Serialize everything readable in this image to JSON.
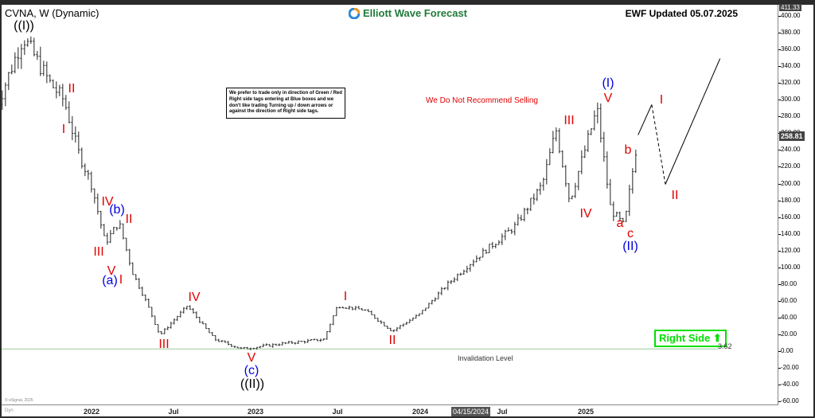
{
  "header": {
    "title": "CVNA, W (Dynamic)",
    "logo": "Elliott Wave Forecast",
    "updated": "EWF Updated 05.07.2025"
  },
  "note": "We prefer to trade only in direction of Green / Red Right side tags entering at Blue boxes and we don't like trading Turning up / down arrows or against the direction of Right side tags.",
  "no_sell": "We Do Not Recommend Selling",
  "right_side": "Right Side",
  "right_side_icon": "arrow-up-icon",
  "invalidation": {
    "label": "Invalidation Level",
    "value": "3.62"
  },
  "price_tag": "258.81",
  "top_tag": "411.33",
  "date_tag": "04/15/2024",
  "copyright": "© eSignal, 2025",
  "dyn": "Dyn",
  "colors": {
    "red": "#e00000",
    "blue": "#0000e0",
    "green": "#00e000"
  },
  "chart_data": {
    "type": "candlestick",
    "ylim": [
      -60,
      411.33
    ],
    "yticks": [
      "400.00",
      "380.00",
      "360.00",
      "340.00",
      "320.00",
      "300.00",
      "280.00",
      "260.00",
      "240.00",
      "220.00",
      "200.00",
      "180.00",
      "160.00",
      "140.00",
      "120.00",
      "100.00",
      "80.00",
      "60.00",
      "40.00",
      "20.00",
      "0.00",
      "-20.00",
      "-40.00",
      "-60.00"
    ],
    "xticks": [
      "2022",
      "Jul",
      "2023",
      "Jul",
      "2024",
      "Jul",
      "2025"
    ],
    "price_path": [
      [
        "2021-06",
        290
      ],
      [
        "2021-08",
        376
      ],
      [
        "2021-10",
        320
      ],
      [
        "2021-11",
        300
      ],
      [
        "2021-12",
        240
      ],
      [
        "2022-01",
        200
      ],
      [
        "2022-02",
        130
      ],
      [
        "2022-03",
        155
      ],
      [
        "2022-04",
        95
      ],
      [
        "2022-05",
        60
      ],
      [
        "2022-06",
        20
      ],
      [
        "2022-08",
        55
      ],
      [
        "2022-10",
        15
      ],
      [
        "2022-12",
        3.62
      ],
      [
        "2023-03",
        10
      ],
      [
        "2023-06",
        15
      ],
      [
        "2023-07",
        55
      ],
      [
        "2023-09",
        50
      ],
      [
        "2023-11",
        25
      ],
      [
        "2024-01",
        45
      ],
      [
        "2024-03",
        80
      ],
      [
        "2024-05",
        110
      ],
      [
        "2024-08",
        150
      ],
      [
        "2024-10",
        200
      ],
      [
        "2024-11",
        265
      ],
      [
        "2024-12",
        180
      ],
      [
        "2025-02",
        290
      ],
      [
        "2025-03",
        170
      ],
      [
        "2025-04",
        150
      ],
      [
        "2025-05",
        258.81
      ]
    ],
    "projection": [
      [
        "2025-05",
        258.81
      ],
      [
        "2025-06",
        295
      ],
      [
        "2025-07",
        200
      ],
      [
        "2025-11",
        350
      ]
    ],
    "labels": [
      {
        "t": "((I))",
        "c": "blk"
      },
      {
        "t": "I",
        "c": "red"
      },
      {
        "t": "II",
        "c": "red"
      },
      {
        "t": "III",
        "c": "red"
      },
      {
        "t": "IV",
        "c": "red"
      },
      {
        "t": "V",
        "c": "red"
      },
      {
        "t": "(a)",
        "c": "blue"
      },
      {
        "t": "(b)",
        "c": "blue"
      },
      {
        "t": "I",
        "c": "red"
      },
      {
        "t": "II",
        "c": "red"
      },
      {
        "t": "III",
        "c": "red"
      },
      {
        "t": "IV",
        "c": "red"
      },
      {
        "t": "V",
        "c": "red"
      },
      {
        "t": "(c)",
        "c": "blue"
      },
      {
        "t": "((II))",
        "c": "blk"
      },
      {
        "t": "I",
        "c": "red"
      },
      {
        "t": "II",
        "c": "red"
      },
      {
        "t": "III",
        "c": "red"
      },
      {
        "t": "IV",
        "c": "red"
      },
      {
        "t": "V",
        "c": "red"
      },
      {
        "t": "(I)",
        "c": "blue"
      },
      {
        "t": "a",
        "c": "red"
      },
      {
        "t": "b",
        "c": "red"
      },
      {
        "t": "c",
        "c": "red"
      },
      {
        "t": "(II)",
        "c": "blue"
      },
      {
        "t": "I",
        "c": "red"
      },
      {
        "t": "II",
        "c": "red"
      }
    ]
  }
}
